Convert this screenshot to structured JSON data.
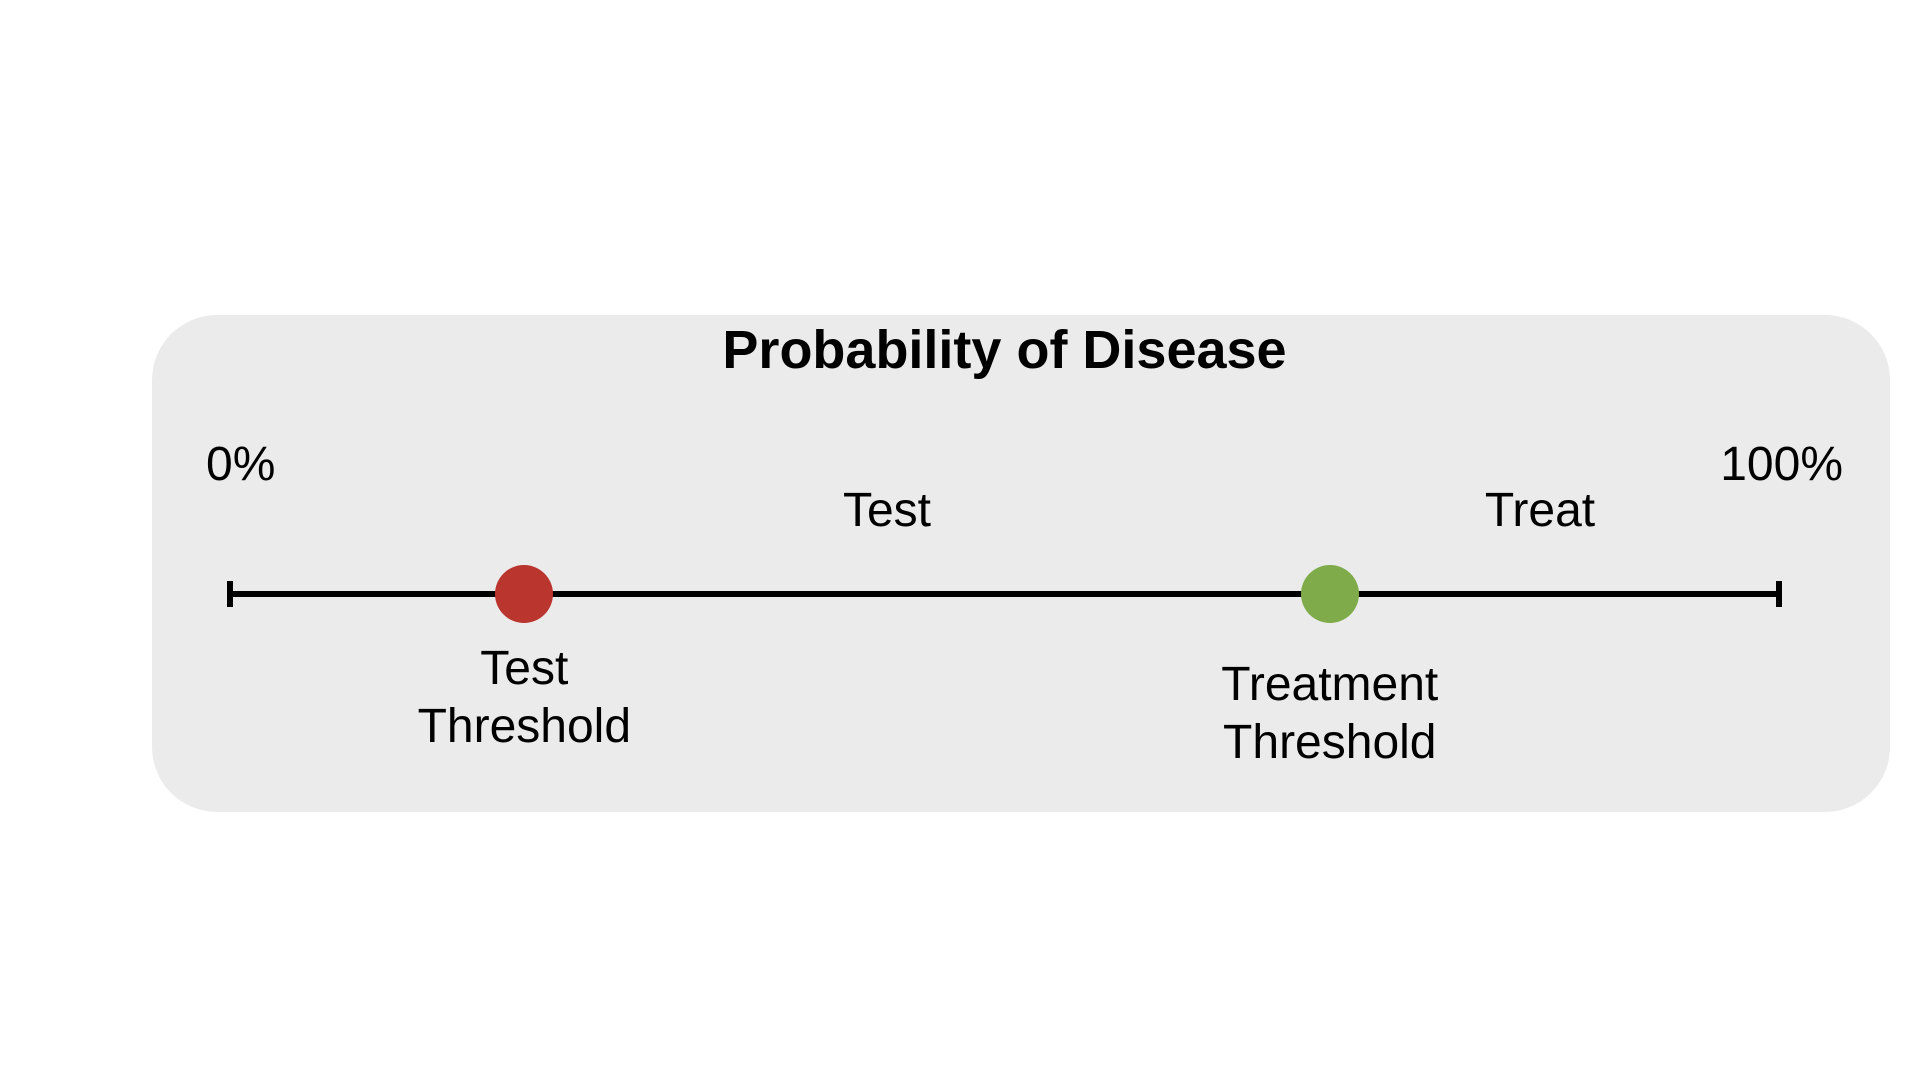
{
  "figure": {
    "title": "Probability of Disease",
    "panel_bg_color": "#ebebeb",
    "text_color": "#000000",
    "axis": {
      "min_label": "0%",
      "max_label": "100%",
      "min_value": 0,
      "max_value": 100,
      "line_color": "#000000"
    },
    "regions": [
      {
        "label": "Test"
      },
      {
        "label": "Treat"
      }
    ],
    "thresholds": [
      {
        "name": "Test Threshold",
        "label_line1": "Test",
        "label_line2": "Threshold",
        "color": "#bb352f",
        "value_pct": 19
      },
      {
        "name": "Treatment Threshold",
        "label_line1": "Treatment",
        "label_line2": "Threshold",
        "color": "#7fab4a",
        "value_pct": 71
      }
    ]
  }
}
